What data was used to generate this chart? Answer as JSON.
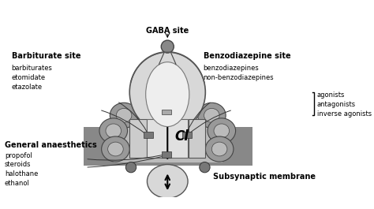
{
  "background_color": "#ffffff",
  "fig_width": 4.74,
  "fig_height": 2.65,
  "dpi": 100,
  "labels": {
    "gaba_site": "GABA site",
    "barbiturate_site": "Barbiturate site",
    "barbiturate_drugs": "barbiturates\netomidate\netazolate",
    "benzo_site": "Benzodiazepine site",
    "benzo_drugs": "benzodiazepines\nnon-benzodiazepines",
    "benzo_classes": "agonists\nantagonists\ninverse agonists",
    "general_anaesthetics": "General anaesthetics",
    "ga_drugs": "propofol\nsteroids\nhalothane\nethanol",
    "subsynaptic": "Subsynaptic membrane",
    "cl": "Cl"
  },
  "colors": {
    "dark_gray": "#666666",
    "medium_gray": "#999999",
    "light_gray": "#cccccc",
    "very_light_gray": "#e8e8e8",
    "white": "#ffffff",
    "black": "#000000",
    "outline": "#444444",
    "receptor_fill": "#d0d0d0",
    "subunit_dark": "#888888",
    "subunit_light": "#bbbbbb"
  }
}
